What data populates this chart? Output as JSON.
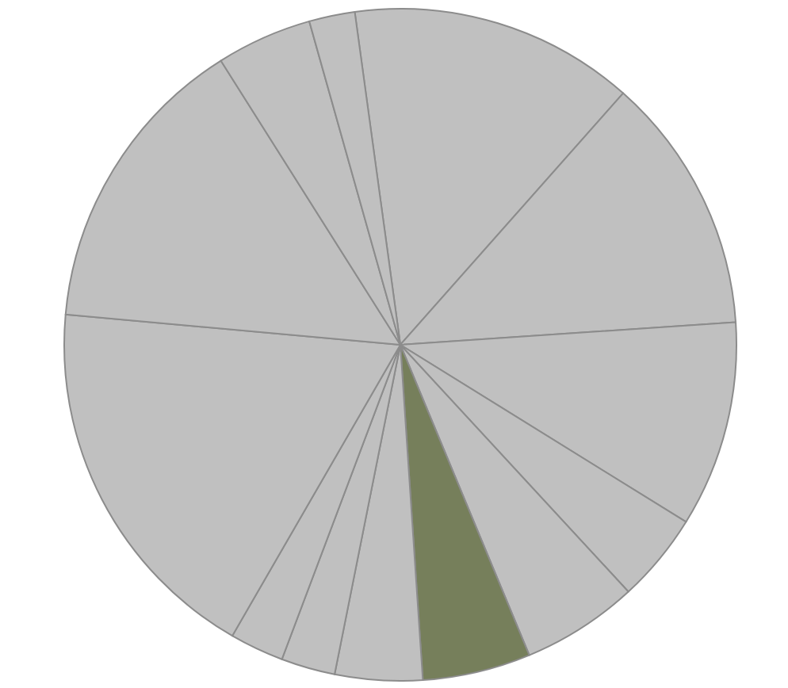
{
  "chart_data": {
    "type": "pie",
    "categories": [
      null,
      null,
      null,
      null,
      null,
      null,
      null,
      null,
      null,
      null,
      null,
      null,
      null
    ],
    "values": [
      13.7,
      12.4,
      9.9,
      4.3,
      5.6,
      5.2,
      4.2,
      2.6,
      2.6,
      18.1,
      14.6,
      4.6,
      2.2
    ],
    "colors": [
      "#c0c0c0",
      "#c0c0c0",
      "#c0c0c0",
      "#c0c0c0",
      "#c0c0c0",
      "#767f5b",
      "#c0c0c0",
      "#c0c0c0",
      "#c0c0c0",
      "#c0c0c0",
      "#c0c0c0",
      "#c0c0c0",
      "#c0c0c0"
    ]
  }
}
